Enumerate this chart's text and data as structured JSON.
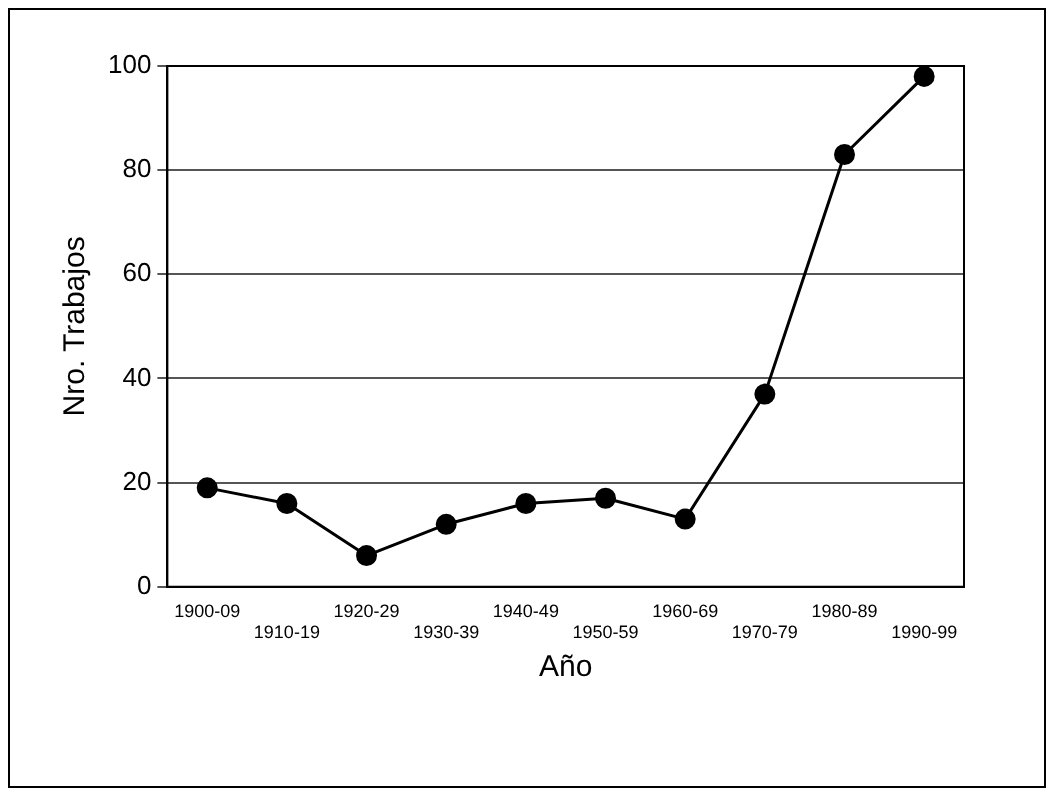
{
  "chart_data": {
    "type": "line",
    "xlabel": "Año",
    "ylabel": "Nro. Trabajos",
    "categories": [
      "1900-09",
      "1910-19",
      "1920-29",
      "1930-39",
      "1940-49",
      "1950-59",
      "1960-69",
      "1970-79",
      "1980-89",
      "1990-99"
    ],
    "values": [
      19,
      16,
      6,
      12,
      16,
      17,
      13,
      37,
      83,
      98
    ],
    "color": "#000000",
    "ylim": [
      0,
      100
    ],
    "yticks": [
      0,
      20,
      40,
      60,
      80,
      100
    ],
    "grid": "y",
    "marker": "circle",
    "line_style": "solid"
  }
}
